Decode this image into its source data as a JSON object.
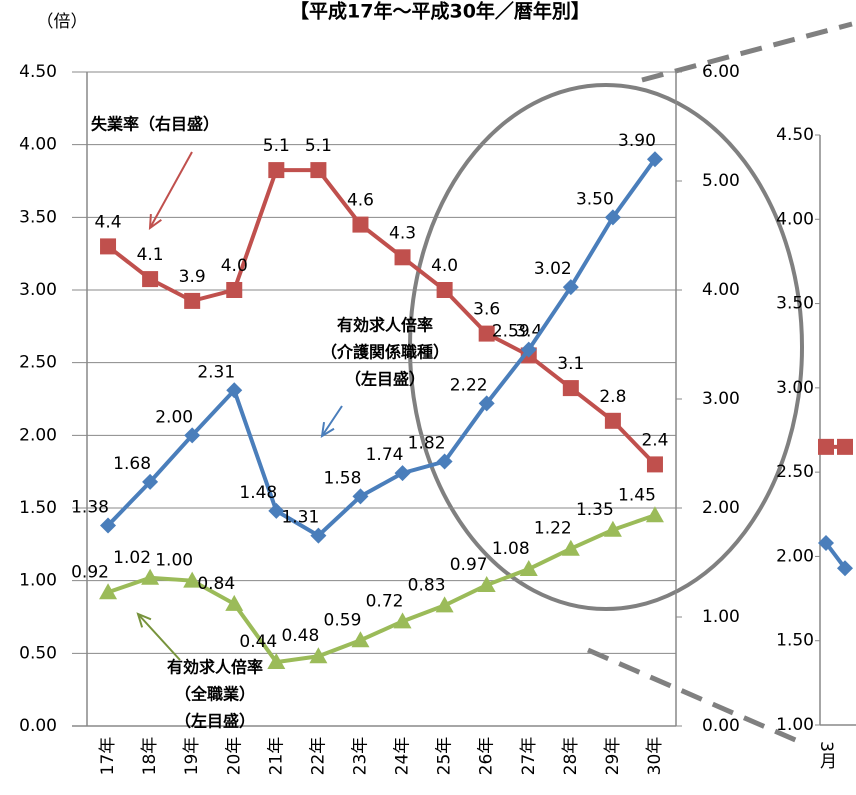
{
  "chart_data": [
    {
      "type": "line",
      "title": "【平成17年～平成30年／暦年別】",
      "ylabel": "（倍）",
      "categories": [
        "17年",
        "18年",
        "19年",
        "20年",
        "21年",
        "22年",
        "23年",
        "24年",
        "25年",
        "26年",
        "27年",
        "28年",
        "29年",
        "30年"
      ],
      "ylim": [
        0,
        4.5
      ],
      "yticks": [
        {
          "value": 0,
          "label": "0.00"
        },
        {
          "value": 0.5,
          "label": "0.50"
        },
        {
          "value": 1,
          "label": "1.00"
        },
        {
          "value": 1.5,
          "label": "1.50"
        },
        {
          "value": 2,
          "label": "2.00"
        },
        {
          "value": 2.5,
          "label": "2.50"
        },
        {
          "value": 3,
          "label": "3.00"
        },
        {
          "value": 3.5,
          "label": "3.50"
        },
        {
          "value": 4,
          "label": "4.00"
        },
        {
          "value": 4.5,
          "label": "4.50"
        }
      ],
      "y2lim": [
        0,
        6
      ],
      "y2ticks": [
        {
          "value": 0,
          "label": "0.00"
        },
        {
          "value": 1,
          "label": "1.00"
        },
        {
          "value": 2,
          "label": "2.00"
        },
        {
          "value": 3,
          "label": "3.00"
        },
        {
          "value": 4,
          "label": "4.00"
        },
        {
          "value": 5,
          "label": "5.00"
        },
        {
          "value": 6,
          "label": "6.00"
        }
      ],
      "grid": true,
      "series": [
        {
          "name": "失業率（右目盛）",
          "color": "#c0504d",
          "marker": "square",
          "axis": "y2",
          "values": [
            4.4,
            4.1,
            3.9,
            4.0,
            5.1,
            5.1,
            4.6,
            4.3,
            4.0,
            3.6,
            3.4,
            3.1,
            2.8,
            2.4
          ],
          "value_labels": [
            "4.4",
            "4.1",
            "3.9",
            "4.0",
            "5.1",
            "5.1",
            "4.6",
            "4.3",
            "4.0",
            "3.6",
            "3.4",
            "3.1",
            "2.8",
            "2.4"
          ]
        },
        {
          "name": "有効求人倍率（介護関係職種）（左目盛）",
          "color": "#4a7ebb",
          "marker": "diamond",
          "values": [
            1.38,
            1.68,
            2.0,
            2.31,
            1.48,
            1.31,
            1.58,
            1.74,
            1.82,
            2.22,
            2.59,
            3.02,
            3.5,
            3.9
          ],
          "value_labels": [
            "1.38",
            "1.68",
            "2.00",
            "2.31",
            "1.48",
            "1.31",
            "1.58",
            "1.74",
            "1.82",
            "2.22",
            "2.59",
            "3.02",
            "3.50",
            "3.90"
          ]
        },
        {
          "name": "有効求人倍率（全職業）（左目盛）",
          "color": "#9bbb59",
          "marker": "triangle",
          "values": [
            0.92,
            1.02,
            1.0,
            0.84,
            0.44,
            0.48,
            0.59,
            0.72,
            0.83,
            0.97,
            1.08,
            1.22,
            1.35,
            1.45
          ],
          "value_labels": [
            "0.92",
            "1.02",
            "1.00",
            "0.84",
            "0.44",
            "0.48",
            "0.59",
            "0.72",
            "0.83",
            "0.97",
            "1.08",
            "1.22",
            "1.35",
            "1.45"
          ]
        }
      ],
      "annotations": [
        {
          "lines": [
            "失業率（右目盛）"
          ],
          "color": "#c0504d"
        },
        {
          "lines": [
            "有効求人倍率",
            "（介護関係職種）",
            "（左目盛）"
          ],
          "color": "#4a7ebb"
        },
        {
          "lines": [
            "有効求人倍率",
            "（全職業）",
            "（左目盛）"
          ],
          "color": "#77933c"
        }
      ]
    },
    {
      "type": "line",
      "categories": [
        "3月",
        null
      ],
      "ylim": [
        1,
        4.5
      ],
      "yticks": [
        {
          "value": 1,
          "label": "1.00"
        },
        {
          "value": 1.5,
          "label": "1.50"
        },
        {
          "value": 2,
          "label": "2.00"
        },
        {
          "value": 2.5,
          "label": "2.50"
        },
        {
          "value": 3,
          "label": "3.00"
        },
        {
          "value": 3.5,
          "label": "3.50"
        },
        {
          "value": 4,
          "label": "4.00"
        },
        {
          "value": 4.5,
          "label": "4.50"
        }
      ],
      "series": [
        {
          "color": "#c0504d",
          "marker": "square",
          "values": [
            2.65,
            2.65
          ]
        },
        {
          "color": "#4a7ebb",
          "marker": "diamond",
          "values": [
            2.08,
            1.93
          ]
        }
      ]
    }
  ]
}
